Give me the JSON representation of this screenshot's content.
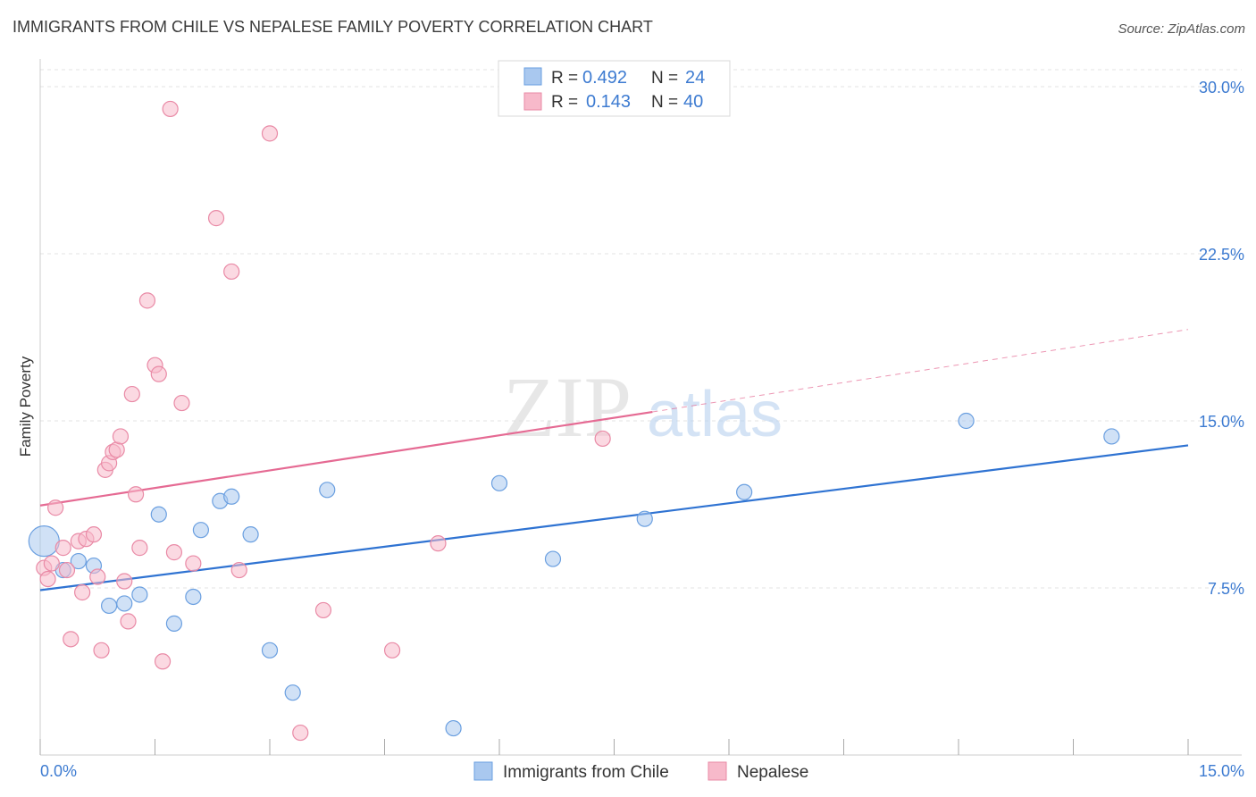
{
  "title": "IMMIGRANTS FROM CHILE VS NEPALESE FAMILY POVERTY CORRELATION CHART",
  "source": "Source: ZipAtlas.com",
  "watermark": {
    "zip": "ZIP",
    "atlas": "atlas"
  },
  "colors": {
    "blue_fill": "#a9c8ef",
    "blue_stroke": "#6a9fe0",
    "blue_line": "#2f73d2",
    "pink_fill": "#f7b9ca",
    "pink_stroke": "#e98aa6",
    "pink_line": "#e56a93",
    "tick_text": "#3d7bd1",
    "grid": "#e3e3e3"
  },
  "chart_data": {
    "type": "scatter",
    "title": "IMMIGRANTS FROM CHILE VS NEPALESE FAMILY POVERTY CORRELATION CHART",
    "xlabel": "",
    "ylabel": "Family Poverty",
    "xlim": [
      0,
      15
    ],
    "ylim": [
      0,
      30.8
    ],
    "x_tick_labels": [
      {
        "value": 0,
        "label": "0.0%"
      },
      {
        "value": 15,
        "label": "15.0%"
      }
    ],
    "y_tick_labels": [
      {
        "value": 7.5,
        "label": "7.5%"
      },
      {
        "value": 15,
        "label": "15.0%"
      },
      {
        "value": 22.5,
        "label": "22.5%"
      },
      {
        "value": 30,
        "label": "30.0%"
      }
    ],
    "grid": true,
    "legend_position": "top-center",
    "legend": [
      {
        "r_label": "R =",
        "r_value": "0.492",
        "n_label": "N =",
        "n_value": "24"
      },
      {
        "r_label": "R =",
        "r_value": "0.143",
        "n_label": "N =",
        "n_value": "40"
      }
    ],
    "bottom_legend": [
      "Immigrants from Chile",
      "Nepalese"
    ],
    "series": [
      {
        "name": "Immigrants from Chile",
        "color": "blue",
        "points": [
          [
            0.05,
            9.6
          ],
          [
            0.3,
            8.3
          ],
          [
            0.5,
            8.7
          ],
          [
            0.7,
            8.5
          ],
          [
            0.9,
            6.7
          ],
          [
            1.1,
            6.8
          ],
          [
            1.3,
            7.2
          ],
          [
            1.55,
            10.8
          ],
          [
            1.75,
            5.9
          ],
          [
            2.0,
            7.1
          ],
          [
            2.1,
            10.1
          ],
          [
            2.35,
            11.4
          ],
          [
            2.5,
            11.6
          ],
          [
            2.75,
            9.9
          ],
          [
            3.0,
            4.7
          ],
          [
            3.3,
            2.8
          ],
          [
            3.75,
            11.9
          ],
          [
            5.4,
            1.2
          ],
          [
            6.0,
            12.2
          ],
          [
            6.7,
            8.8
          ],
          [
            7.9,
            10.6
          ],
          [
            9.2,
            11.8
          ],
          [
            12.1,
            15.0
          ],
          [
            14.0,
            14.3
          ]
        ],
        "trend": {
          "x0": 0,
          "y0": 7.4,
          "x1": 15,
          "y1": 13.9,
          "dashed_to": null
        }
      },
      {
        "name": "Nepalese",
        "color": "pink",
        "points": [
          [
            0.05,
            8.4
          ],
          [
            0.1,
            7.9
          ],
          [
            0.2,
            11.1
          ],
          [
            0.3,
            9.3
          ],
          [
            0.35,
            8.3
          ],
          [
            0.4,
            5.2
          ],
          [
            0.5,
            9.6
          ],
          [
            0.55,
            7.3
          ],
          [
            0.6,
            9.7
          ],
          [
            0.7,
            9.9
          ],
          [
            0.75,
            8.0
          ],
          [
            0.8,
            4.7
          ],
          [
            0.85,
            12.8
          ],
          [
            0.9,
            13.1
          ],
          [
            0.95,
            13.6
          ],
          [
            1.0,
            13.7
          ],
          [
            1.05,
            14.3
          ],
          [
            1.1,
            7.8
          ],
          [
            1.15,
            6.0
          ],
          [
            1.2,
            16.2
          ],
          [
            1.25,
            11.7
          ],
          [
            1.3,
            9.3
          ],
          [
            1.4,
            20.4
          ],
          [
            1.5,
            17.5
          ],
          [
            1.55,
            17.1
          ],
          [
            1.6,
            4.2
          ],
          [
            1.7,
            29.0
          ],
          [
            1.75,
            9.1
          ],
          [
            1.85,
            15.8
          ],
          [
            2.0,
            8.6
          ],
          [
            2.3,
            24.1
          ],
          [
            2.5,
            21.7
          ],
          [
            2.6,
            8.3
          ],
          [
            3.0,
            27.9
          ],
          [
            3.4,
            1.0
          ],
          [
            3.7,
            6.5
          ],
          [
            4.6,
            4.7
          ],
          [
            5.2,
            9.5
          ],
          [
            7.35,
            14.2
          ],
          [
            0.15,
            8.6
          ]
        ],
        "trend": {
          "x0": 0,
          "y0": 11.2,
          "x1": 8.0,
          "y1": 15.4,
          "dashed_to": {
            "x": 15,
            "y": 19.1
          }
        }
      }
    ]
  }
}
